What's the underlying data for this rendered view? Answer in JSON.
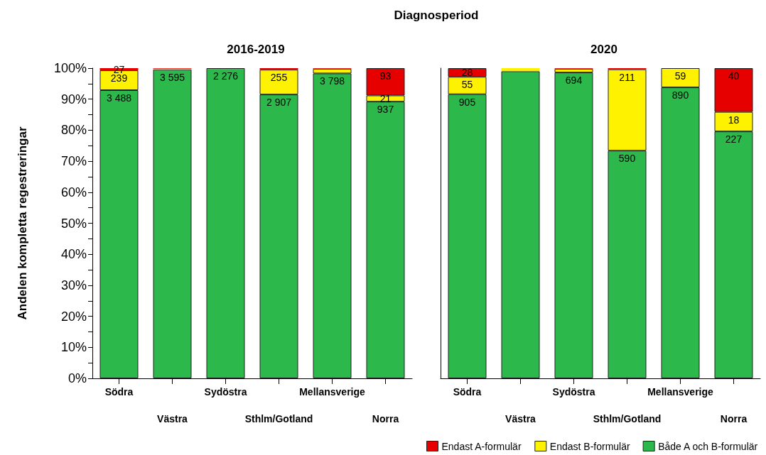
{
  "chart_data": [
    {
      "type": "bar",
      "title": "2016-2019",
      "ylabel": "Andelen kompletta regestreringar",
      "stacked": true,
      "categories": [
        "Södra",
        "Västra",
        "Sydöstra",
        "Sthlm/Gotland",
        "Mellansverige",
        "Norra"
      ],
      "series": [
        {
          "color": "#2db84b",
          "values": [
            92.9,
            99.6,
            100,
            91.5,
            98.3,
            89.2
          ]
        },
        {
          "color": "#fff200",
          "values": [
            6.4,
            0.2,
            0,
            8.0,
            1.5,
            2.0
          ]
        },
        {
          "color": "#e60000",
          "values": [
            0.7,
            0.2,
            0,
            0.5,
            0.2,
            8.8
          ]
        }
      ],
      "annotations": [
        "Diagnosperiod",
        {
          "text": "3 488",
          "x": "Södra",
          "y": 92.9
        },
        {
          "text": "239",
          "x": "Södra",
          "y": 99.3
        },
        {
          "text": "27",
          "x": "Södra",
          "y": 100
        },
        {
          "text": "3 595",
          "x": "Västra",
          "y": 99.6
        },
        {
          "text": "2 276",
          "x": "Sydöstra",
          "y": 100
        },
        {
          "text": "2 907",
          "x": "Sthlm/Gotland",
          "y": 91.5
        },
        {
          "text": "255",
          "x": "Sthlm/Gotland",
          "y": 99.5
        },
        {
          "text": "3 798",
          "x": "Mellansverige",
          "y": 98.3
        },
        {
          "text": "937",
          "x": "Norra",
          "y": 89.2
        },
        {
          "text": "21",
          "x": "Norra",
          "y": 91.2
        },
        {
          "text": "93",
          "x": "Norra",
          "y": 100
        }
      ],
      "ylim": [
        0,
        100
      ],
      "yticks": [
        {
          "value": 0,
          "label": "0%"
        },
        {
          "value": 5,
          "label": null
        },
        {
          "value": 10,
          "label": "10%"
        },
        {
          "value": 15,
          "label": null
        },
        {
          "value": 20,
          "label": "20%"
        },
        {
          "value": 25,
          "label": null
        },
        {
          "value": 30,
          "label": "30%"
        },
        {
          "value": 35,
          "label": null
        },
        {
          "value": 40,
          "label": "40%"
        },
        {
          "value": 45,
          "label": null
        },
        {
          "value": 50,
          "label": "50%"
        },
        {
          "value": 55,
          "label": null
        },
        {
          "value": 60,
          "label": "60%"
        },
        {
          "value": 65,
          "label": null
        },
        {
          "value": 70,
          "label": "70%"
        },
        {
          "value": 75,
          "label": null
        },
        {
          "value": 80,
          "label": "80%"
        },
        {
          "value": 85,
          "label": null
        },
        {
          "value": 90,
          "label": "90%"
        },
        {
          "value": 95,
          "label": null
        },
        {
          "value": 100,
          "label": "100%"
        }
      ],
      "grid": false,
      "legend": false
    },
    {
      "type": "bar",
      "title": "2020",
      "stacked": true,
      "categories": [
        "Södra",
        "Västra",
        "Sydöstra",
        "Sthlm/Gotland",
        "Mellansverige",
        "Norra"
      ],
      "series": [
        {
          "name": "Både A och B-formulär",
          "color": "#2db84b",
          "values": [
            91.6,
            99.0,
            98.6,
            73.4,
            93.8,
            79.6
          ]
        },
        {
          "name": "Endast B-formulär",
          "color": "#fff200",
          "values": [
            5.6,
            1.0,
            1.2,
            26.2,
            6.2,
            6.3
          ]
        },
        {
          "name": "Endast A-formulär",
          "color": "#e60000",
          "values": [
            2.8,
            0,
            0.2,
            0.4,
            0,
            14.1
          ]
        }
      ],
      "annotations": [
        {
          "text": "905",
          "x": "Södra",
          "y": 91.6
        },
        {
          "text": "55",
          "x": "Södra",
          "y": 97.2
        },
        {
          "text": "28",
          "x": "Södra",
          "y": 100
        },
        {
          "text": "694",
          "x": "Sydöstra",
          "y": 98.6
        },
        {
          "text": "590",
          "x": "Sthlm/Gotland",
          "y": 73.4
        },
        {
          "text": "211",
          "x": "Sthlm/Gotland",
          "y": 99.6
        },
        {
          "text": "890",
          "x": "Mellansverige",
          "y": 93.8
        },
        {
          "text": "59",
          "x": "Mellansverige",
          "y": 100
        },
        {
          "text": "227",
          "x": "Norra",
          "y": 79.6
        },
        {
          "text": "18",
          "x": "Norra",
          "y": 85.9
        },
        {
          "text": "40",
          "x": "Norra",
          "y": 100
        }
      ],
      "ylim": [
        0,
        100
      ],
      "tick_labels": "x",
      "grid": false,
      "legend": "bottom"
    }
  ]
}
